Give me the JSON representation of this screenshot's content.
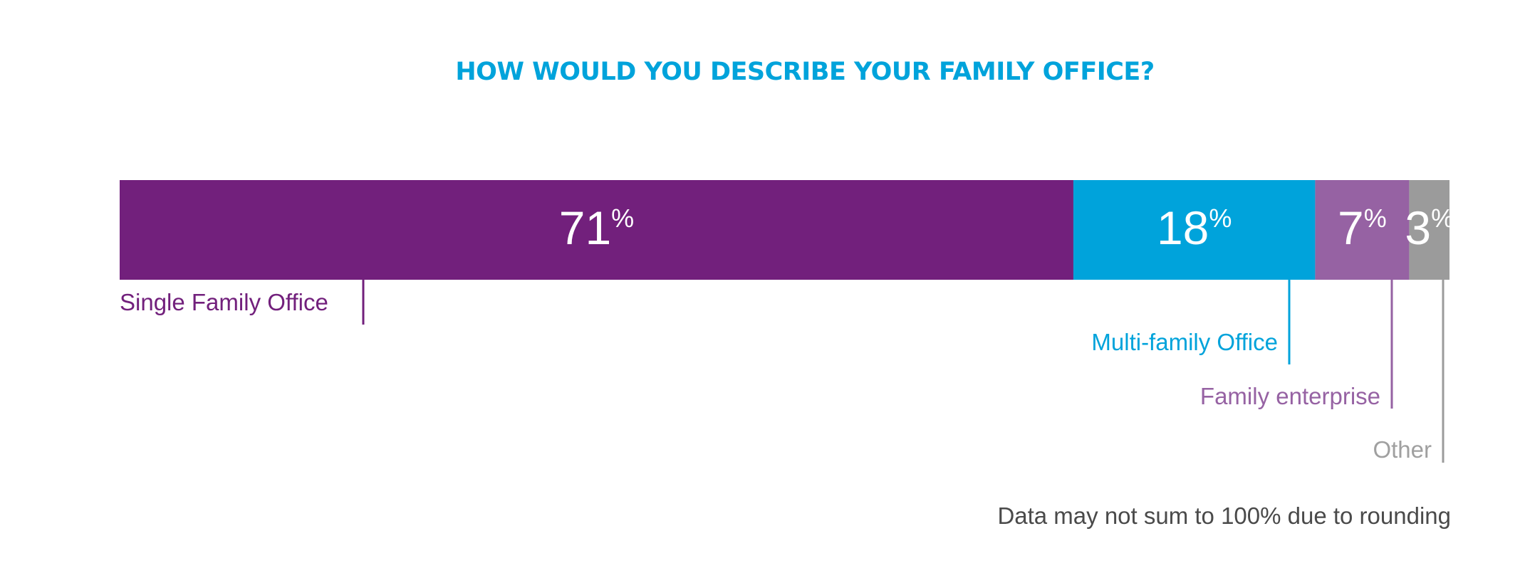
{
  "chart_data": {
    "type": "bar",
    "orientation": "horizontal-stacked",
    "title": "HOW WOULD YOU DESCRIBE YOUR FAMILY OFFICE?",
    "categories": [
      "Single Family Office",
      "Multi-family Office",
      "Family enterprise",
      "Other"
    ],
    "values": [
      71,
      18,
      7,
      3
    ],
    "value_suffix": "%",
    "colors": [
      "#72207c",
      "#00a3db",
      "#9662a3",
      "#9b9b9b"
    ],
    "label_colors": [
      "#72207c",
      "#00a3db",
      "#9662a3",
      "#a0a0a0"
    ],
    "note": "Data may not sum to 100% due to rounding",
    "title_color": "#00a3db",
    "note_color": "#4a4a4a"
  }
}
